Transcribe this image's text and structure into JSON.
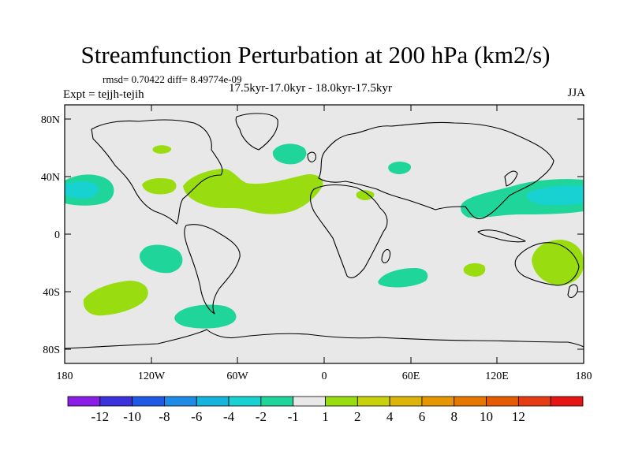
{
  "title": "Streamfunction Perturbation at 200 hPa (km2/s)",
  "stats": "rmsd= 0.70422 diff= 8.49774e-09",
  "experiment": "Expt = tejjh-tejih",
  "subtitle": "17.5kyr-17.0kyr - 18.0kyr-17.5kyr",
  "season": "JJA",
  "colors": {
    "ocean": "#e8e8e8",
    "neg_minus2_minus1": "#1fd59a",
    "neg_minus4_minus2": "#18d2d2",
    "pos_1_2": "#99dd11"
  },
  "chart_data": {
    "type": "contour-map",
    "projection": "cylindrical-equidistant",
    "lon_range": [
      -180,
      180
    ],
    "lat_range": [
      -90,
      90
    ],
    "x_ticks": [
      "180",
      "120W",
      "60W",
      "0",
      "60E",
      "120E",
      "180"
    ],
    "y_ticks": [
      "80N",
      "40N",
      "0",
      "40S",
      "80S"
    ],
    "colorbar": {
      "colors": [
        "#8a1ee6",
        "#3c32dc",
        "#1e5ae6",
        "#1e8ce6",
        "#14b4dc",
        "#18d2d2",
        "#1fd59a",
        "#e8e8e8",
        "#99dd11",
        "#c8d20a",
        "#dcb40a",
        "#e69600",
        "#e67800",
        "#e65a00",
        "#e63c14",
        "#e61414"
      ],
      "labels": [
        "-12",
        "-10",
        "-8",
        "-6",
        "-4",
        "-2",
        "-1",
        "1",
        "2",
        "4",
        "6",
        "8",
        "10",
        "12"
      ]
    },
    "anomalies": [
      {
        "name": "N Pacific east (lon 180)",
        "lon": -170,
        "lat": 32,
        "level_range": [
          -4,
          -1
        ]
      },
      {
        "name": "NW Pacific / E Asia",
        "lon": 140,
        "lat": 28,
        "level_range": [
          -4,
          -1
        ]
      },
      {
        "name": "N Atlantic high lat",
        "lon": -26,
        "lat": 55,
        "level_range": [
          -2,
          -1
        ]
      },
      {
        "name": "Mongolia",
        "lon": 97,
        "lat": 47,
        "level_range": [
          -2,
          -1
        ]
      },
      {
        "name": "Tropical E Pacific south",
        "lon": -116,
        "lat": -18,
        "level_range": [
          -2,
          -1
        ]
      },
      {
        "name": "South of South America",
        "lon": -70,
        "lat": -55,
        "level_range": [
          -2,
          -1
        ]
      },
      {
        "name": "S Indian Ocean",
        "lon": 55,
        "lat": -26,
        "level_range": [
          -2,
          -1
        ]
      },
      {
        "name": "N America / N Atlantic band",
        "lon": -45,
        "lat": 32,
        "level_range": [
          1,
          2
        ]
      },
      {
        "name": "W USA",
        "lon": -115,
        "lat": 37,
        "level_range": [
          1,
          2
        ]
      },
      {
        "name": "Canada",
        "lon": -112,
        "lat": 58,
        "level_range": [
          1,
          2
        ]
      },
      {
        "name": "E Mediterranean",
        "lon": 30,
        "lat": 27,
        "level_range": [
          1,
          2
        ]
      },
      {
        "name": "S Pacific midlat",
        "lon": -144,
        "lat": -48,
        "level_range": [
          1,
          2
        ]
      },
      {
        "name": "Australia / Tasman",
        "lon": 160,
        "lat": -20,
        "level_range": [
          1,
          2
        ]
      },
      {
        "name": "E Indian Ocean",
        "lon": 104,
        "lat": -25,
        "level_range": [
          1,
          2
        ]
      }
    ]
  }
}
